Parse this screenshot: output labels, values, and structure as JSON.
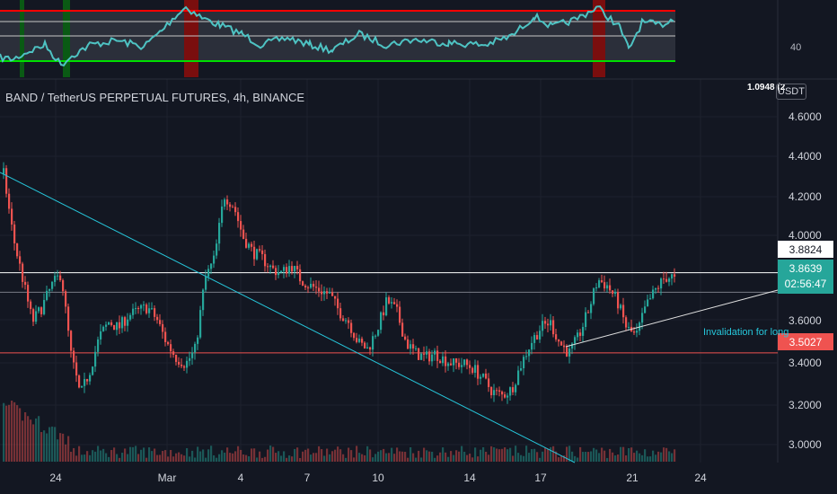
{
  "header": {
    "symbol_text": "BAND / TetherUS PERPETUAL FUTURES, 4h, BINANCE"
  },
  "rsi_panel": {
    "tick_label": "40",
    "line_color": "#4ec3c3",
    "upper_band_color": "#ff0000",
    "lower_band_color": "#00e000"
  },
  "scale": {
    "top_value": "1.0948 (2",
    "currency_button": "USDT"
  },
  "price_tags": {
    "resistance": "3.8824",
    "last_price": "3.8639",
    "countdown": "02:56:47",
    "invalidation": "3.5027"
  },
  "annotation": {
    "invalidation_text": "Invalidation for long"
  },
  "colors": {
    "up": "#26a69a",
    "down": "#ef5350",
    "background": "#131722",
    "trendline": "#26c6da"
  },
  "chart_data": {
    "type": "candlestick",
    "y_ticks": [
      "4.6000",
      "4.4000",
      "4.2000",
      "4.0000",
      "3.6000",
      "3.4000",
      "3.2000",
      "3.0000"
    ],
    "x_ticks": [
      "24",
      "Mar",
      "4",
      "7",
      "10",
      "14",
      "17",
      "21",
      "24"
    ],
    "close_path": [
      4.35,
      4.05,
      3.85,
      3.65,
      3.72,
      3.82,
      3.88,
      3.5,
      3.3,
      3.42,
      3.58,
      3.65,
      3.62,
      3.68,
      3.7,
      3.72,
      3.66,
      3.55,
      3.48,
      3.45,
      3.52,
      3.85,
      3.95,
      4.25,
      4.2,
      4.05,
      3.98,
      3.95,
      3.9,
      3.88,
      3.92,
      3.85,
      3.82,
      3.8,
      3.78,
      3.7,
      3.65,
      3.55,
      3.52,
      3.62,
      3.75,
      3.7,
      3.55,
      3.5,
      3.48,
      3.5,
      3.47,
      3.45,
      3.45,
      3.43,
      3.38,
      3.32,
      3.3,
      3.33,
      3.45,
      3.55,
      3.62,
      3.65,
      3.55,
      3.5,
      3.58,
      3.7,
      3.85,
      3.82,
      3.75,
      3.62,
      3.58,
      3.72,
      3.8,
      3.86,
      3.8639
    ],
    "levels": [
      {
        "value": 3.8824,
        "color": "#ffffff"
      },
      {
        "value": 3.79,
        "color": "#787b86"
      },
      {
        "value": 3.5027,
        "color": "#ef5350"
      }
    ]
  }
}
